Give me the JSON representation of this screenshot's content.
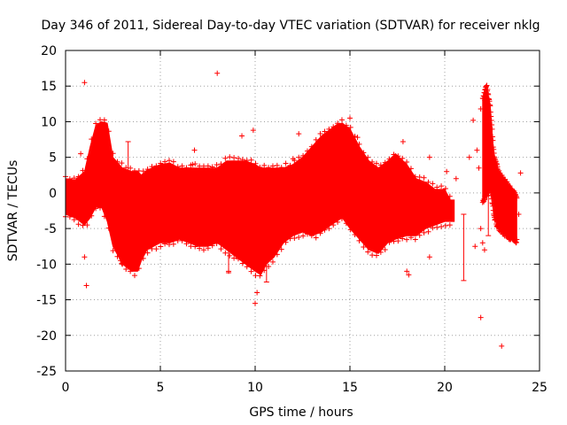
{
  "chart_data": {
    "type": "scatter",
    "title": "Day 346 of 2011, Sidereal Day-to-day VTEC variation (SDTVAR) for receiver nklg",
    "xlabel": "GPS time / hours",
    "ylabel": "SDTVAR / TECUs",
    "xlim": [
      0,
      25
    ],
    "ylim": [
      -25,
      20
    ],
    "xticks": [
      0,
      5,
      10,
      15,
      20,
      25
    ],
    "xtick_labels": [
      "0",
      "5",
      "10",
      "15",
      "20",
      "25"
    ],
    "yticks": [
      -25,
      -20,
      -15,
      -10,
      -5,
      0,
      5,
      10,
      15,
      20
    ],
    "ytick_labels": [
      "-25",
      "-20",
      "-15",
      "-10",
      "-5",
      "0",
      "5",
      "10",
      "15",
      "20"
    ],
    "grid": true,
    "marker": "+",
    "color": "#ff0000",
    "envelope": {
      "description": "dense band of points: upper and lower bounds (TECU) vs GPS time (hours)",
      "x": [
        0.0,
        0.5,
        1.0,
        1.3,
        1.6,
        1.9,
        2.2,
        2.5,
        3.0,
        3.5,
        3.8,
        4.0,
        4.3,
        5.0,
        5.5,
        6.0,
        6.5,
        7.0,
        7.5,
        8.0,
        8.5,
        9.0,
        9.5,
        10.0,
        10.3,
        10.6,
        11.0,
        11.5,
        12.0,
        12.5,
        13.0,
        13.5,
        14.0,
        14.3,
        14.6,
        15.0,
        15.5,
        16.0,
        16.5,
        17.0,
        17.4,
        18.0,
        18.5,
        19.0,
        19.5,
        20.0,
        20.3,
        20.5
      ],
      "upper": [
        2.0,
        1.8,
        3.0,
        6.5,
        9.5,
        10.0,
        9.8,
        5.0,
        3.5,
        3.0,
        3.0,
        2.5,
        3.2,
        4.0,
        4.2,
        3.5,
        3.5,
        3.5,
        3.5,
        3.5,
        4.5,
        4.5,
        4.5,
        4.0,
        3.5,
        3.5,
        3.5,
        3.5,
        4.0,
        5.0,
        6.5,
        8.0,
        9.0,
        9.6,
        9.8,
        9.0,
        6.5,
        4.5,
        3.5,
        4.5,
        5.5,
        4.0,
        2.0,
        1.5,
        0.5,
        0.5,
        -1.0,
        -1.0
      ],
      "lower": [
        -3.0,
        -3.5,
        -4.5,
        -3.5,
        -2.0,
        -2.0,
        -4.0,
        -7.5,
        -10.0,
        -11.0,
        -11.0,
        -9.5,
        -8.0,
        -7.0,
        -7.0,
        -6.5,
        -7.0,
        -7.5,
        -7.5,
        -7.0,
        -8.0,
        -9.0,
        -10.0,
        -11.0,
        -11.5,
        -10.0,
        -9.0,
        -7.0,
        -6.0,
        -5.5,
        -6.0,
        -5.5,
        -4.5,
        -4.0,
        -3.5,
        -5.0,
        -6.5,
        -8.0,
        -8.5,
        -7.0,
        -6.5,
        -6.0,
        -6.0,
        -5.0,
        -4.5,
        -4.0,
        -4.0,
        -4.0
      ]
    },
    "envelope_late": {
      "description": "second dense cluster near 22-24 h",
      "x": [
        22.0,
        22.2,
        22.4,
        22.6,
        22.8,
        23.0,
        23.3,
        23.6,
        23.8
      ],
      "upper": [
        13.0,
        14.8,
        12.0,
        5.0,
        3.0,
        2.0,
        1.0,
        0.0,
        -1.0
      ],
      "lower": [
        -1.0,
        0.0,
        1.0,
        -3.0,
        -4.5,
        -5.0,
        -6.0,
        -6.0,
        -6.5
      ]
    },
    "outliers": [
      [
        1.0,
        15.5
      ],
      [
        1.0,
        -9.0
      ],
      [
        1.1,
        -13.0
      ],
      [
        0.8,
        5.5
      ],
      [
        2.9,
        -9.5
      ],
      [
        3.0,
        -10.0
      ],
      [
        6.8,
        6.0
      ],
      [
        6.7,
        4.0
      ],
      [
        8.0,
        16.8
      ],
      [
        9.3,
        8.0
      ],
      [
        9.9,
        8.8
      ],
      [
        8.6,
        -11.0
      ],
      [
        10.0,
        -15.5
      ],
      [
        10.1,
        -14.0
      ],
      [
        12.0,
        4.8
      ],
      [
        12.3,
        8.3
      ],
      [
        12.3,
        3.5
      ],
      [
        15.0,
        10.5
      ],
      [
        15.4,
        7.8
      ],
      [
        17.8,
        7.2
      ],
      [
        18.0,
        -11.0
      ],
      [
        18.1,
        -11.5
      ],
      [
        19.2,
        -9.0
      ],
      [
        19.2,
        5.0
      ],
      [
        20.1,
        3.0
      ],
      [
        20.6,
        2.0
      ],
      [
        21.3,
        5.0
      ],
      [
        21.5,
        10.2
      ],
      [
        21.6,
        -7.5
      ],
      [
        21.7,
        6.0
      ],
      [
        21.8,
        3.5
      ],
      [
        21.9,
        11.8
      ],
      [
        21.9,
        -5.0
      ],
      [
        22.0,
        -7.0
      ],
      [
        22.1,
        -8.0
      ],
      [
        21.9,
        -17.5
      ],
      [
        23.0,
        -21.5
      ],
      [
        24.0,
        2.8
      ],
      [
        23.9,
        -3.0
      ]
    ],
    "error_bars": [
      {
        "x": 3.3,
        "low": -4.0,
        "high": 7.2
      },
      {
        "x": 8.6,
        "low": -11.2,
        "high": -5.5
      },
      {
        "x": 10.6,
        "low": -12.5,
        "high": -6.0
      },
      {
        "x": 21.0,
        "low": -12.3,
        "high": -3.0
      },
      {
        "x": 22.3,
        "low": -6.0,
        "high": 11.5
      }
    ]
  }
}
